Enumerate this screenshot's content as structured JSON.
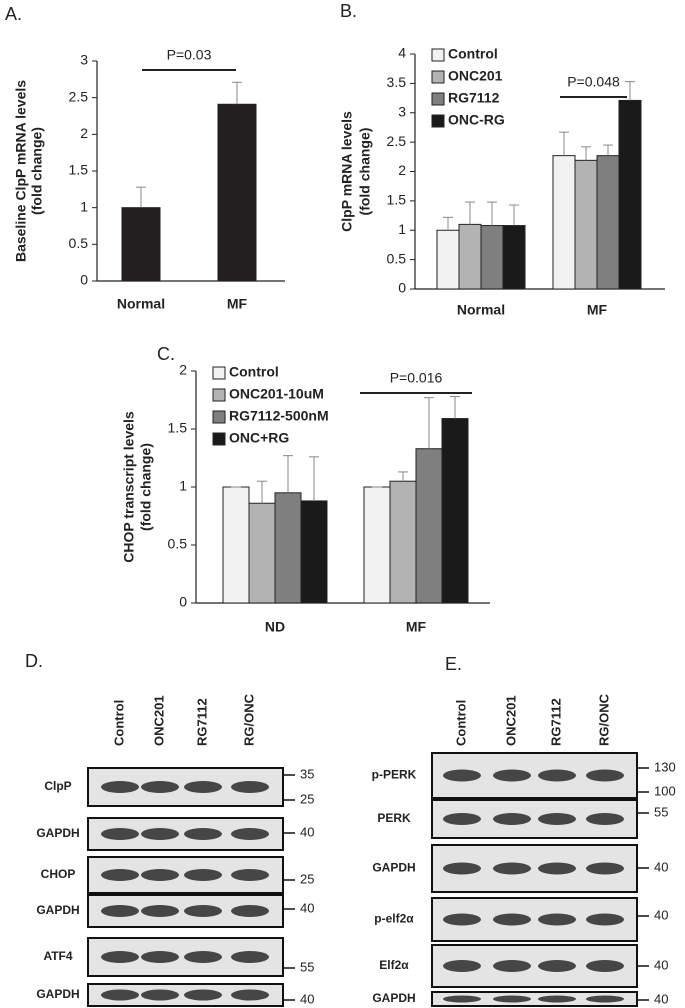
{
  "chart_data": [
    {
      "type": "bar",
      "panel": "A.",
      "ylabel": [
        "Baseline ClpP mRNA levels",
        "(fold change)"
      ],
      "categories": [
        "Normal",
        "MF"
      ],
      "values": [
        1.0,
        2.41
      ],
      "errors": [
        0.28,
        0.3
      ],
      "color": "#231f20",
      "ylim": [
        0,
        3
      ],
      "yticks": [
        0,
        0.5,
        1,
        1.5,
        2,
        2.5,
        3
      ],
      "annotation": "P=0.03"
    },
    {
      "type": "bar",
      "panel": "B.",
      "ylabel": [
        "ClpP mRNA levels",
        "(fold change)"
      ],
      "categories": [
        "Normal",
        "MF"
      ],
      "series": [
        {
          "name": "Control",
          "color": "#f2f2f2",
          "values": [
            1.0,
            2.27
          ],
          "errors": [
            0.22,
            0.4
          ]
        },
        {
          "name": "ONC201",
          "color": "#b3b3b3",
          "values": [
            1.1,
            2.19
          ],
          "errors": [
            0.38,
            0.23
          ]
        },
        {
          "name": "RG7112",
          "color": "#7f7f7f",
          "values": [
            1.08,
            2.27
          ],
          "errors": [
            0.4,
            0.18
          ]
        },
        {
          "name": "ONC-RG",
          "color": "#1a1a1a",
          "values": [
            1.08,
            3.21
          ],
          "errors": [
            0.35,
            0.32
          ]
        }
      ],
      "ylim": [
        0,
        4
      ],
      "yticks": [
        0,
        0.5,
        1,
        1.5,
        2,
        2.5,
        3,
        3.5,
        4
      ],
      "legend": "top-left",
      "annotation": "P=0.048"
    },
    {
      "type": "bar",
      "panel": "C.",
      "ylabel": [
        "CHOP transcript levels",
        "(fold change)"
      ],
      "categories": [
        "ND",
        "MF"
      ],
      "series": [
        {
          "name": "Control",
          "color": "#f2f2f2",
          "values": [
            1.0,
            1.0
          ],
          "errors": [
            0,
            0
          ]
        },
        {
          "name": "ONC201-10uM",
          "color": "#b3b3b3",
          "values": [
            0.86,
            1.05
          ],
          "errors": [
            0.19,
            0.08
          ]
        },
        {
          "name": "RG7112-500nM",
          "color": "#7f7f7f",
          "values": [
            0.95,
            1.33
          ],
          "errors": [
            0.32,
            0.44
          ]
        },
        {
          "name": "ONC+RG",
          "color": "#1a1a1a",
          "values": [
            0.88,
            1.59
          ],
          "errors": [
            0.38,
            0.19
          ]
        }
      ],
      "ylim": [
        0,
        2
      ],
      "yticks": [
        0,
        0.5,
        1,
        1.5,
        2
      ],
      "legend": "top-left",
      "annotation": "P=0.016"
    }
  ],
  "blots": [
    {
      "panel": "D.",
      "lanes": [
        "Control",
        "ONC201",
        "RG7112",
        "RG/ONC"
      ],
      "rows": [
        {
          "label": "ClpP",
          "markers": [
            35,
            25
          ]
        },
        {
          "label": "GAPDH",
          "markers": [
            40
          ]
        },
        {
          "label": "CHOP",
          "markers": [
            25
          ]
        },
        {
          "label": "GAPDH",
          "markers": [
            40
          ]
        },
        {
          "label": "ATF4",
          "markers": [
            55
          ]
        },
        {
          "label": "GAPDH",
          "markers": [
            40
          ]
        }
      ]
    },
    {
      "panel": "E.",
      "lanes": [
        "Control",
        "ONC201",
        "RG7112",
        "RG/ONC"
      ],
      "rows": [
        {
          "label": "p-PERK",
          "markers": [
            130,
            100
          ]
        },
        {
          "label": "PERK",
          "markers": [
            55
          ]
        },
        {
          "label": "GAPDH",
          "markers": [
            40
          ]
        },
        {
          "label": "p-elf2α",
          "markers": [
            40
          ]
        },
        {
          "label": "Elf2α",
          "markers": [
            40
          ]
        },
        {
          "label": "GAPDH",
          "markers": [
            40
          ]
        }
      ]
    }
  ]
}
